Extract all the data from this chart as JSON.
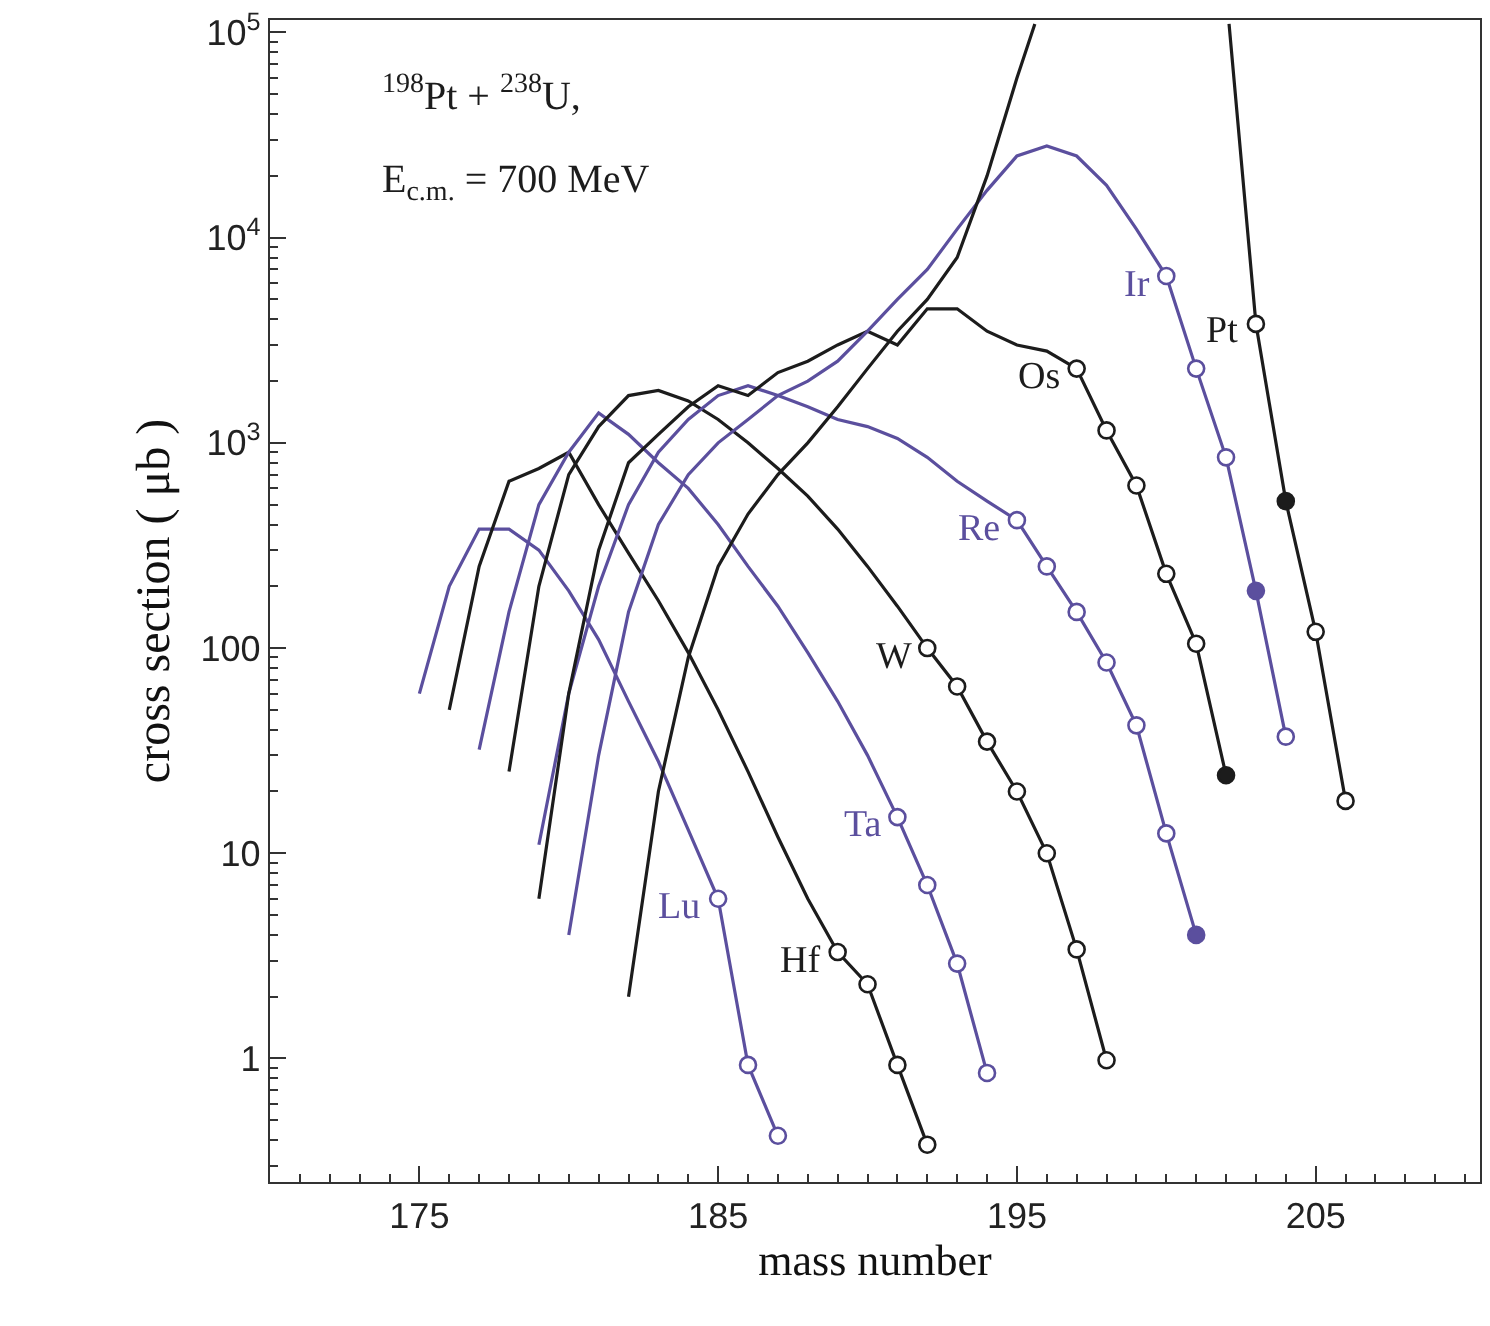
{
  "chart_data": {
    "type": "line",
    "xlabel": "mass number",
    "ylabel": "cross section ( μb )",
    "annotations": [
      "$^{198}$Pt + $^{238}$U,",
      "E$_{c.m.}$ = 700 MeV"
    ],
    "log": "y",
    "xlim": [
      170,
      210.5
    ],
    "ylim": [
      0.25,
      115000
    ],
    "xticks": [
      175,
      185,
      195,
      205
    ],
    "yticks": [
      {
        "value": 1,
        "label": "1"
      },
      {
        "value": 10,
        "label": "10"
      },
      {
        "value": 100,
        "label": "100"
      },
      {
        "value": 1000,
        "label": "10$^{3}$"
      },
      {
        "value": 10000,
        "label": "10$^{4}$"
      },
      {
        "value": 100000,
        "label": "10$^{5}$"
      }
    ],
    "line_style": "solid",
    "series": [
      {
        "name": "Lu",
        "color": "#5b4f9e",
        "x": [
          175,
          176,
          177,
          178,
          179,
          180,
          181,
          182,
          183,
          184,
          185,
          186,
          187
        ],
        "values": [
          60,
          200,
          380,
          380,
          300,
          190,
          110,
          55,
          28,
          13,
          6,
          0.93,
          0.42
        ]
      },
      {
        "type": "scatter",
        "color": "#5b4f9e",
        "x": [
          185,
          186,
          187
        ],
        "values": [
          6,
          0.93,
          0.42
        ],
        "colors": [
          "#ffffff",
          "#ffffff",
          "#ffffff"
        ]
      },
      {
        "name": "Hf",
        "color": "#1c1c1c",
        "x": [
          176,
          177,
          178,
          179,
          180,
          181,
          182,
          183,
          184,
          185,
          186,
          187,
          188,
          189,
          190,
          191,
          192
        ],
        "values": [
          50,
          250,
          650,
          750,
          900,
          500,
          290,
          170,
          95,
          50,
          25,
          12,
          6,
          3.3,
          2.3,
          0.93,
          0.38
        ]
      },
      {
        "type": "scatter",
        "color": "#1c1c1c",
        "x": [
          189,
          190,
          191,
          192
        ],
        "values": [
          3.3,
          2.3,
          0.93,
          0.38
        ],
        "colors": [
          "#ffffff",
          "#ffffff",
          "#ffffff",
          "#ffffff"
        ]
      },
      {
        "name": "Ta",
        "color": "#5b4f9e",
        "x": [
          177,
          178,
          179,
          180,
          181,
          182,
          183,
          184,
          185,
          186,
          187,
          188,
          189,
          190,
          191,
          192,
          193,
          194
        ],
        "values": [
          32,
          150,
          500,
          900,
          1400,
          1100,
          800,
          600,
          400,
          250,
          160,
          95,
          55,
          30,
          15,
          7,
          2.9,
          0.85
        ]
      },
      {
        "type": "scatter",
        "color": "#5b4f9e",
        "x": [
          191,
          192,
          193,
          194
        ],
        "values": [
          15,
          7,
          2.9,
          0.85
        ],
        "colors": [
          "#ffffff",
          "#ffffff",
          "#ffffff",
          "#ffffff"
        ]
      },
      {
        "name": "W",
        "color": "#1c1c1c",
        "x": [
          178,
          179,
          180,
          181,
          182,
          183,
          184,
          185,
          186,
          187,
          188,
          189,
          190,
          191,
          192,
          193,
          194,
          195,
          196,
          197,
          198
        ],
        "values": [
          25,
          200,
          700,
          1200,
          1700,
          1800,
          1600,
          1300,
          1000,
          750,
          550,
          380,
          250,
          160,
          100,
          65,
          35,
          20,
          10,
          3.4,
          0.98
        ]
      },
      {
        "type": "scatter",
        "color": "#1c1c1c",
        "x": [
          192,
          193,
          194,
          195,
          196,
          197,
          198
        ],
        "values": [
          100,
          65,
          35,
          20,
          10,
          3.4,
          0.98
        ],
        "colors": [
          "#ffffff",
          "#ffffff",
          "#ffffff",
          "#ffffff",
          "#ffffff",
          "#ffffff",
          "#ffffff"
        ]
      },
      {
        "name": "Re",
        "color": "#5b4f9e",
        "x": [
          179,
          180,
          181,
          182,
          183,
          184,
          185,
          186,
          187,
          188,
          189,
          190,
          191,
          192,
          193,
          194,
          195,
          196,
          197,
          198,
          199,
          200,
          201
        ],
        "values": [
          11,
          60,
          200,
          500,
          900,
          1300,
          1700,
          1900,
          1700,
          1500,
          1300,
          1200,
          1050,
          850,
          650,
          520,
          420,
          250,
          150,
          85,
          42,
          12.5,
          4
        ]
      },
      {
        "type": "scatter",
        "color": "#5b4f9e",
        "x": [
          195,
          196,
          197,
          198,
          199,
          200,
          201
        ],
        "values": [
          420,
          250,
          150,
          85,
          42,
          12.5,
          4
        ],
        "colors": [
          "#ffffff",
          "#ffffff",
          "#ffffff",
          "#ffffff",
          "#ffffff",
          "#ffffff",
          "#5b4f9e"
        ]
      },
      {
        "name": "Os",
        "color": "#1c1c1c",
        "x": [
          179,
          180,
          181,
          182,
          183,
          184,
          185,
          186,
          187,
          188,
          189,
          190,
          191,
          192,
          193,
          194,
          195,
          196,
          197,
          198,
          199,
          200,
          201,
          202
        ],
        "values": [
          6,
          60,
          300,
          800,
          1100,
          1500,
          1900,
          1700,
          2200,
          2500,
          3000,
          3500,
          3000,
          4500,
          4500,
          3500,
          3000,
          2800,
          2300,
          1150,
          620,
          230,
          105,
          24
        ]
      },
      {
        "type": "scatter",
        "color": "#1c1c1c",
        "x": [
          197,
          198,
          199,
          200,
          201,
          202
        ],
        "values": [
          2300,
          1150,
          620,
          230,
          105,
          24
        ],
        "colors": [
          "#ffffff",
          "#ffffff",
          "#ffffff",
          "#ffffff",
          "#ffffff",
          "#1c1c1c"
        ]
      },
      {
        "name": "Ir",
        "color": "#5b4f9e",
        "x": [
          180,
          181,
          182,
          183,
          184,
          185,
          186,
          187,
          188,
          189,
          190,
          191,
          192,
          193,
          194,
          195,
          196,
          197,
          198,
          199,
          200,
          201,
          202,
          203,
          204
        ],
        "values": [
          4,
          30,
          150,
          400,
          700,
          1000,
          1300,
          1700,
          2000,
          2500,
          3500,
          5000,
          7000,
          11000,
          17000,
          25000,
          28000,
          25000,
          18000,
          11000,
          6500,
          2300,
          850,
          190,
          37
        ]
      },
      {
        "type": "scatter",
        "color": "#5b4f9e",
        "x": [
          200,
          201,
          202,
          203,
          204
        ],
        "values": [
          6500,
          2300,
          850,
          190,
          37
        ],
        "colors": [
          "#ffffff",
          "#ffffff",
          "#ffffff",
          "#5b4f9e",
          "#ffffff"
        ]
      },
      {
        "name": "Pt",
        "color": "#1c1c1c",
        "x": [
          182,
          183,
          184,
          185,
          186,
          187,
          188,
          189,
          190,
          191,
          192,
          193,
          194,
          195,
          195.6,
          null,
          202.1,
          203,
          204,
          205,
          206
        ],
        "values": [
          2,
          20,
          90,
          250,
          450,
          700,
          1000,
          1500,
          2300,
          3500,
          5000,
          8000,
          20000,
          60000,
          110000,
          null,
          110000,
          3800,
          520,
          120,
          18
        ]
      },
      {
        "type": "scatter",
        "color": "#1c1c1c",
        "x": [
          203,
          204,
          205,
          206
        ],
        "values": [
          3800,
          520,
          120,
          18
        ],
        "colors": [
          "#ffffff",
          "#1c1c1c",
          "#ffffff",
          "#ffffff"
        ]
      }
    ]
  }
}
